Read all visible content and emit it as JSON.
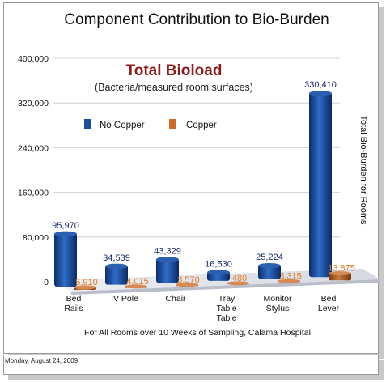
{
  "footer": {
    "date": "Monday, August 24, 2009"
  },
  "chart_data": {
    "type": "bar",
    "title": "Component Contribution to Bio-Burden",
    "subtitle": "Total Bioload",
    "note": "(Bacteria/measured room surfaces)",
    "xlabel": "For All Rooms over 10 Weeks of Sampling, Calama Hospital",
    "ylabel": "Total Bio-Burden for Rooms",
    "ylim": [
      0,
      400000
    ],
    "yticks": [
      "0",
      "80,000",
      "160,000",
      "240,000",
      "320,000",
      "400,000"
    ],
    "ytick_values": [
      0,
      80000,
      160000,
      240000,
      320000,
      400000
    ],
    "grid": false,
    "legend_position": "top-left",
    "categories": [
      [
        "Bed",
        "Rails"
      ],
      [
        "IV Pole"
      ],
      [
        "Chair"
      ],
      [
        "Tray",
        "Table",
        "Table"
      ],
      [
        "Monitor",
        "Stylus"
      ],
      [
        "Bed",
        "Lever"
      ]
    ],
    "series": [
      {
        "name": "No Copper",
        "color": "#1f4e99",
        "values": [
          95970,
          34539,
          43329,
          16530,
          25224,
          330410
        ],
        "labels": [
          "95,970",
          "34,539",
          "43,329",
          "16,530",
          "25,224",
          "330,410"
        ]
      },
      {
        "name": "Copper",
        "color": "#c9692a",
        "values": [
          5910,
          4015,
          3570,
          480,
          3315,
          13875
        ],
        "labels": [
          "5,910",
          "4,015",
          "3,570",
          "480",
          "3,315",
          "13,875"
        ]
      }
    ]
  }
}
